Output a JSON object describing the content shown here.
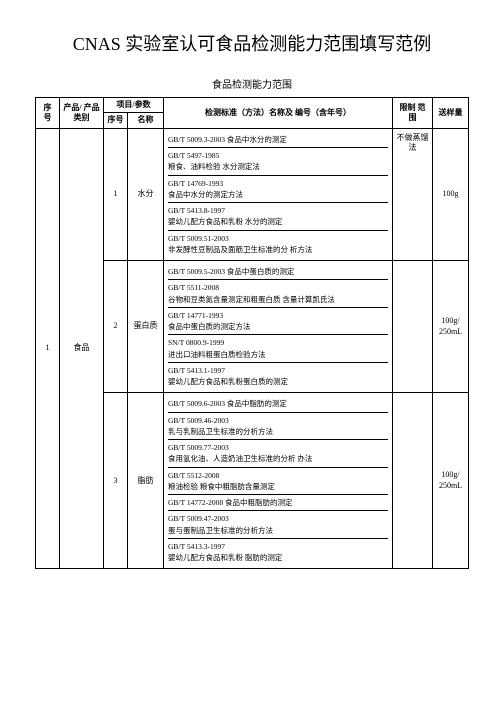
{
  "title": "CNAS 实验室认可食品检测能力范围填写范例",
  "subtitle": "食品检测能力范围",
  "headers": {
    "seq": "序 号",
    "product": "产品/ 产品类别",
    "param_group": "项目/参数",
    "param_seq": "序号",
    "param_name": "名称",
    "method": "检测标准（方法）名称及 编号（含年号）",
    "limit": "限制  范围",
    "sample": "送样量"
  },
  "row_seq": "1",
  "row_product": "食品",
  "params": [
    {
      "seq": "1",
      "name": "水分",
      "limit": "不做蒸馏 法",
      "sample": "100g",
      "methods": [
        "GB/T 5009.3-2003 食品中水分的测定",
        "GB/T 5497-1985\n粮食、油料检验 水分测定法",
        "GB/T 14769-1993\n食品中水分的测定方法",
        "GB/T 5413.8-1997\n婴幼儿配方食品和乳粉 水分的测定",
        "GB/T 5009.51-2003\n非发酵性豆制品及面筋卫生标准的分  析方法"
      ]
    },
    {
      "seq": "2",
      "name": "蛋白质",
      "limit": "",
      "sample": "100g/  250mL",
      "methods": [
        "GB/T 5009.5-2003 食品中蛋白质的测定",
        "GB/T 5511-2008\n谷物和豆类氮含量测定和粗蛋白质  含量计算凯氏法",
        "GB/T 14771-1993\n食品中蛋白质的测定方法",
        "SN/T 0800.9-1999\n进出口油料粗蛋白质检验方法",
        "GB/T 5413.1-1997\n婴幼儿配方食品和乳粉蛋白质的测定"
      ]
    },
    {
      "seq": "3",
      "name": "脂肪",
      "limit": "",
      "sample": "100g/  250mL",
      "methods": [
        "GB/T 5009.6-2003 食品中脂肪的测定",
        "GB/T 5009.46-2003\n乳与乳制品卫生标准的分析方法",
        "GB/T 5009.77-2003\n食用氢化油、人造奶油卫生标准的分析  办法",
        "GB/T 5512-2008\n粮油检验  粮食中粗脂肪含量测定",
        "GB/T 14772-2008 食品中粗脂肪的测定",
        "GB/T 5009.47-2003\n蛋与蛋制品卫生标准的分析方法",
        "GB/T 5413.3-1997\n婴幼儿配方食品和乳粉  脂肪的测定"
      ]
    }
  ]
}
